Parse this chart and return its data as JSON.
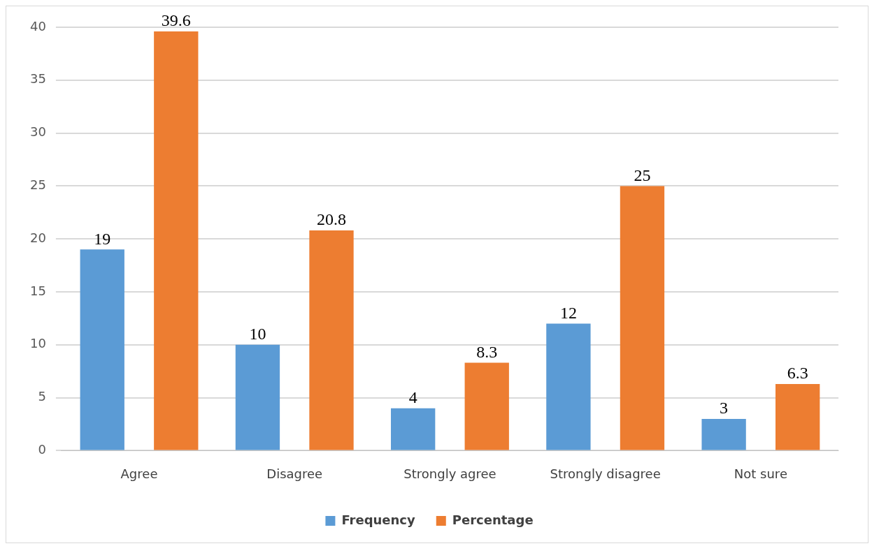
{
  "chart_data": {
    "type": "bar",
    "categories": [
      "Agree",
      "Disagree",
      "Strongly agree",
      "Strongly disagree",
      "Not sure"
    ],
    "series": [
      {
        "name": "Frequency",
        "color": "#5b9bd5",
        "values": [
          19,
          10,
          4,
          12,
          3
        ]
      },
      {
        "name": "Percentage",
        "color": "#ed7d31",
        "values": [
          39.6,
          20.8,
          8.3,
          25,
          6.3
        ]
      }
    ],
    "ylim": [
      0,
      40
    ],
    "yticks": [
      0,
      5,
      10,
      15,
      20,
      25,
      30,
      35,
      40
    ],
    "grid": "y",
    "legend": "bottom",
    "data_labels": true
  }
}
